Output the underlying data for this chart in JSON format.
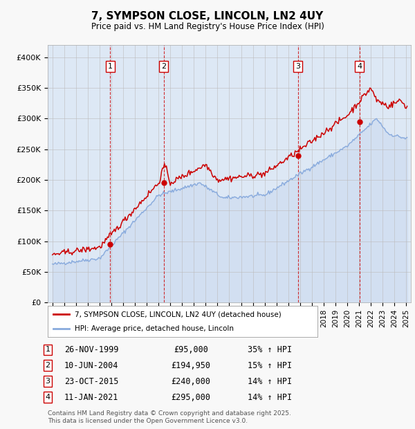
{
  "title": "7, SYMPSON CLOSE, LINCOLN, LN2 4UY",
  "subtitle": "Price paid vs. HM Land Registry's House Price Index (HPI)",
  "legend_line1": "7, SYMPSON CLOSE, LINCOLN, LN2 4UY (detached house)",
  "legend_line2": "HPI: Average price, detached house, Lincoln",
  "transactions": [
    {
      "num": 1,
      "date": "26-NOV-1999",
      "year": 1999.9,
      "price": 95000,
      "hpi_pct": "35% ↑ HPI"
    },
    {
      "num": 2,
      "date": "10-JUN-2004",
      "year": 2004.44,
      "price": 194950,
      "hpi_pct": "15% ↑ HPI"
    },
    {
      "num": 3,
      "date": "23-OCT-2015",
      "year": 2015.81,
      "price": 240000,
      "hpi_pct": "14% ↑ HPI"
    },
    {
      "num": 4,
      "date": "11-JAN-2021",
      "year": 2021.03,
      "price": 295000,
      "hpi_pct": "14% ↑ HPI"
    }
  ],
  "price_color": "#cc0000",
  "hpi_color": "#88aadd",
  "background_color": "#f8f8f8",
  "chart_bg": "#dde8f5",
  "ylim": [
    0,
    420000
  ],
  "xlim_start": 1994.6,
  "xlim_end": 2025.4,
  "yticks": [
    0,
    50000,
    100000,
    150000,
    200000,
    250000,
    300000,
    350000,
    400000
  ],
  "ytick_labels": [
    "£0",
    "£50K",
    "£100K",
    "£150K",
    "£200K",
    "£250K",
    "£300K",
    "£350K",
    "£400K"
  ],
  "footer": "Contains HM Land Registry data © Crown copyright and database right 2025.\nThis data is licensed under the Open Government Licence v3.0."
}
